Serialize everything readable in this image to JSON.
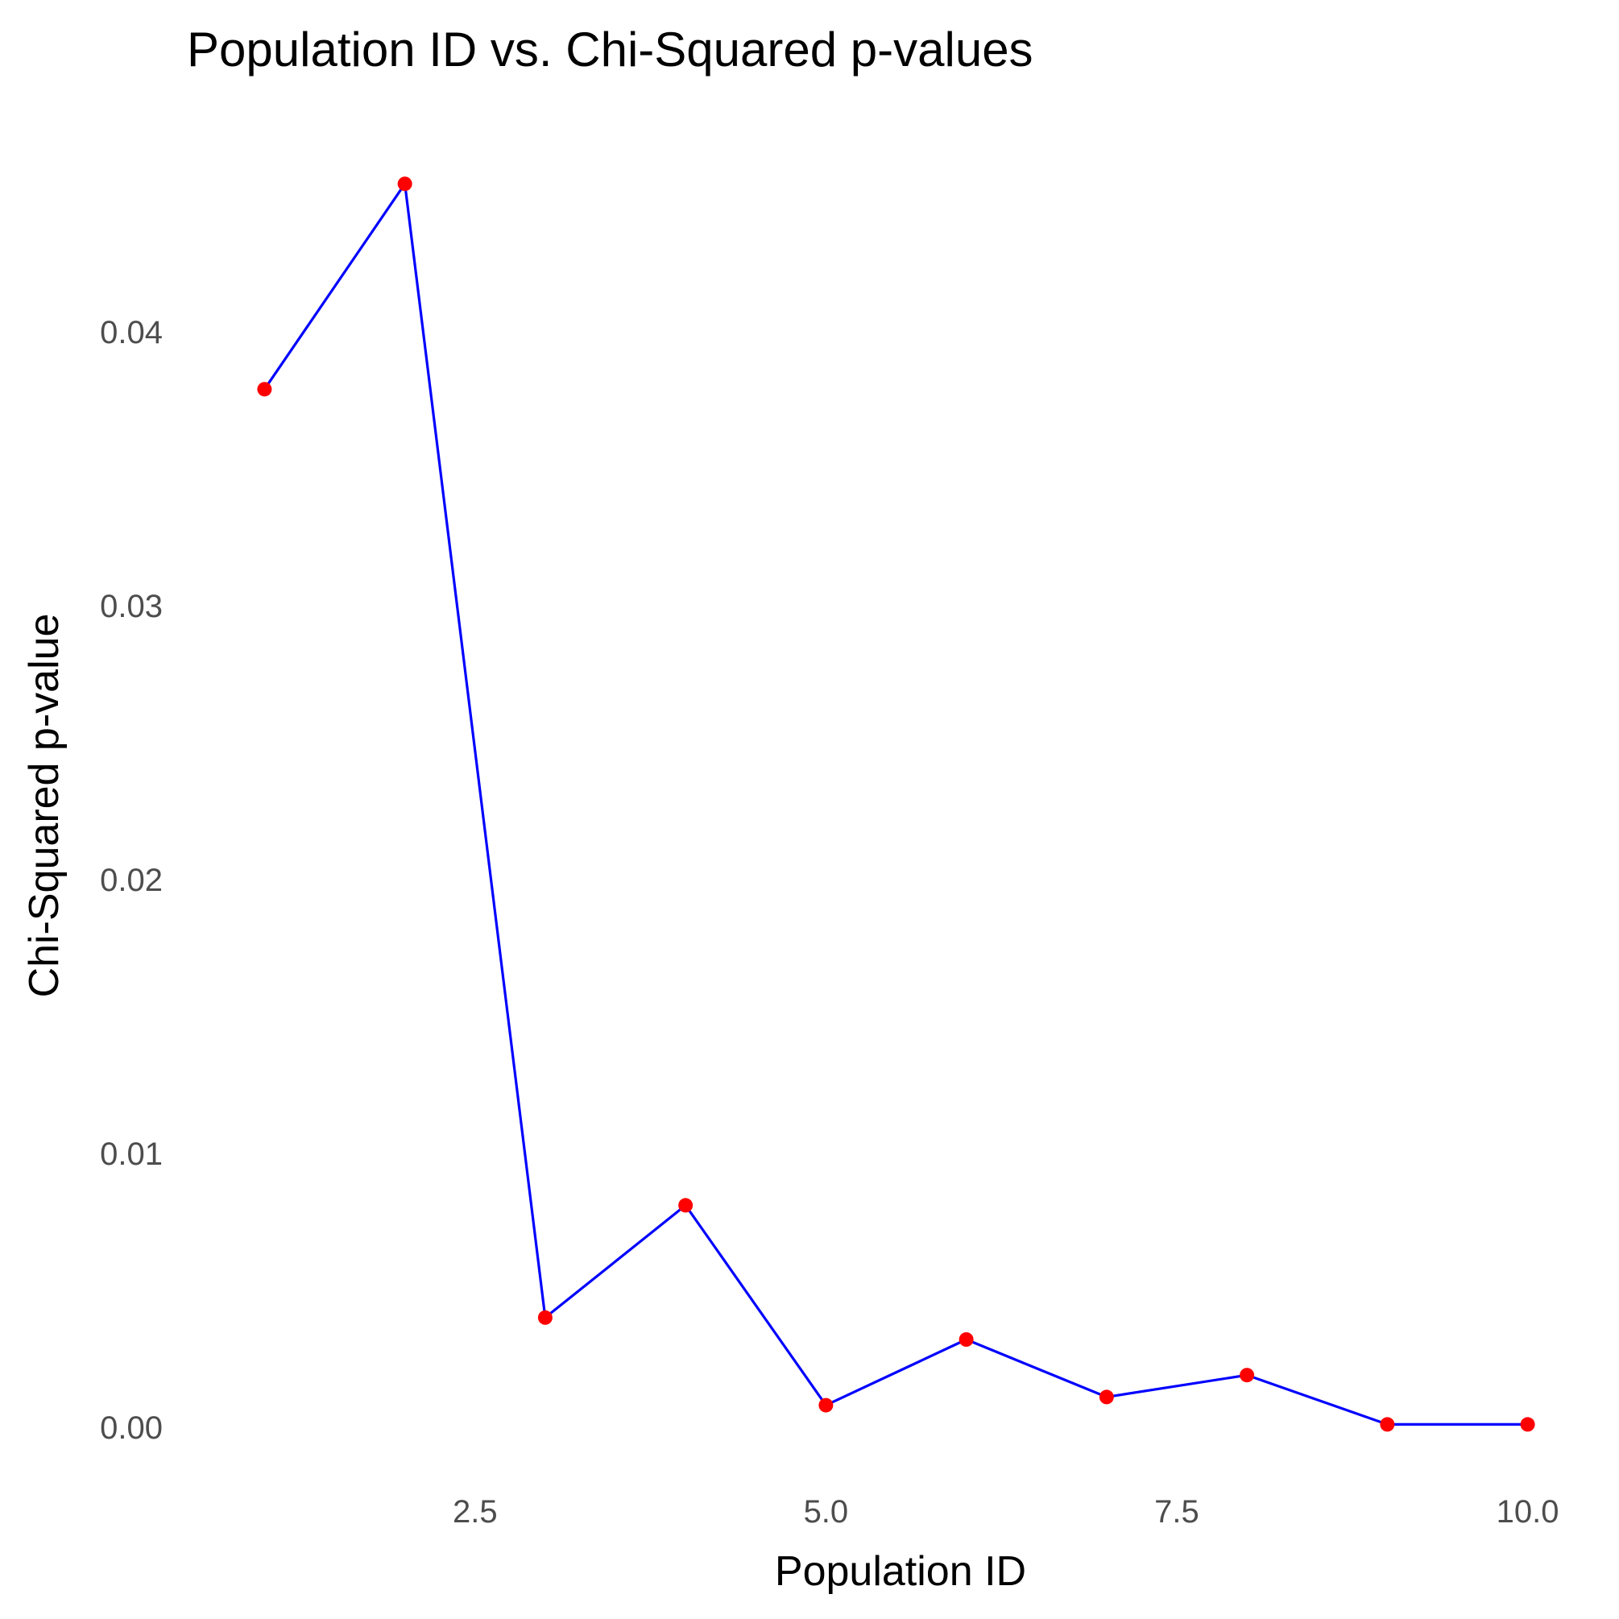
{
  "chart_data": {
    "type": "line",
    "title": "Population ID vs. Chi-Squared p-values",
    "xlabel": "Population ID",
    "ylabel": "Chi-Squared p-value",
    "x": [
      1,
      2,
      3,
      4,
      5,
      6,
      7,
      8,
      9,
      10
    ],
    "series": [
      {
        "values": [
          0.0379,
          0.0454,
          0.004,
          0.0081,
          0.0008,
          0.0032,
          0.0011,
          0.0019,
          0.0001,
          0.0001
        ]
      }
    ],
    "xlim": [
      0.55,
      10.45
    ],
    "ylim": [
      -0.0023,
      0.0477
    ],
    "x_ticks": [
      2.5,
      5.0,
      7.5,
      10.0
    ],
    "x_tick_labels": [
      "2.5",
      "5.0",
      "7.5",
      "10.0"
    ],
    "y_ticks": [
      0.0,
      0.01,
      0.02,
      0.03,
      0.04
    ],
    "y_tick_labels": [
      "0.00",
      "0.01",
      "0.02",
      "0.03",
      "0.04"
    ],
    "grid": false,
    "legend": "none",
    "line_color": "#0000ff",
    "point_color": "#ff0000"
  }
}
